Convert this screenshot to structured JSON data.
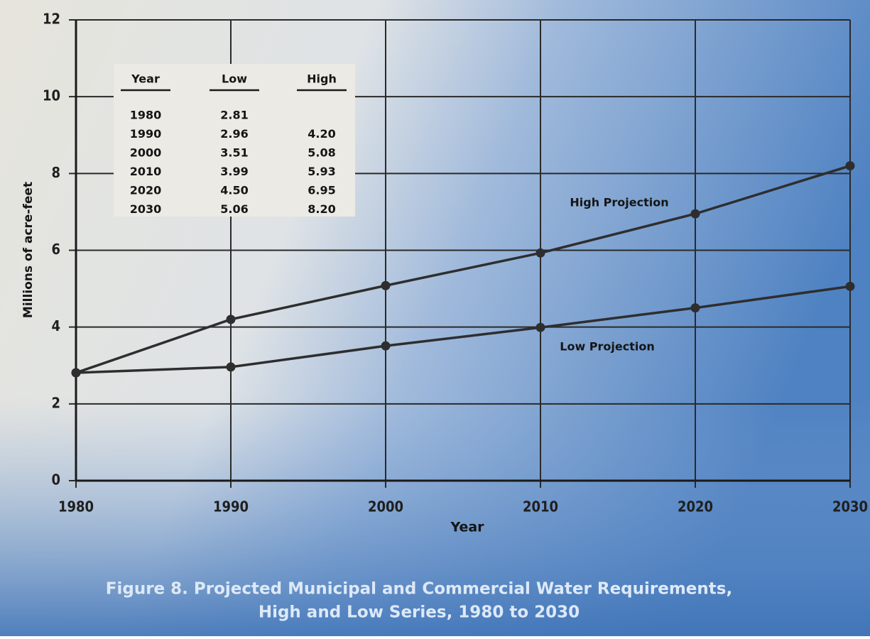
{
  "chart_data": {
    "type": "line",
    "title": [
      "Figure 8. Projected Municipal and Commercial Water Requirements,",
      "High and Low Series, 1980 to 2030"
    ],
    "x_label": "Year",
    "y_label": "Millions of acre-feet",
    "x": [
      1980,
      1990,
      2000,
      2010,
      2020,
      2030
    ],
    "series": [
      {
        "name": "High Projection",
        "color": "#2e2e2e",
        "values": [
          2.81,
          4.2,
          5.08,
          5.93,
          6.95,
          8.2
        ]
      },
      {
        "name": "Low Projection",
        "color": "#2e2e2e",
        "values": [
          2.81,
          2.96,
          3.51,
          3.99,
          4.5,
          5.06
        ]
      }
    ],
    "xlim": [
      1980,
      2030
    ],
    "xticks": [
      1980,
      1990,
      2000,
      2010,
      2020,
      2030
    ],
    "ylim": [
      0,
      12
    ],
    "yticks": [
      0,
      2,
      4,
      6,
      8,
      10,
      12
    ],
    "grid": true,
    "table": {
      "header": [
        "Year",
        "Low",
        "High"
      ],
      "rows": [
        [
          "1980",
          "2.81"
        ],
        [
          "1990",
          "2.96",
          "4.20"
        ],
        [
          "2000",
          "3.51",
          "5.08"
        ],
        [
          "2010",
          "3.99",
          "5.93"
        ],
        [
          "2020",
          "4.50",
          "6.95"
        ],
        [
          "2030",
          "5.06",
          "8.20"
        ]
      ]
    }
  }
}
